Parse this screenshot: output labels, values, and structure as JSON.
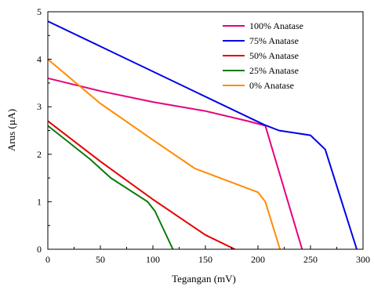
{
  "chart_data": {
    "type": "line",
    "xlabel": "Tegangan (mV)",
    "ylabel": "Arus (µA)",
    "xlim": [
      0,
      300
    ],
    "ylim": [
      0,
      5
    ],
    "x_ticks": [
      "0",
      "50",
      "100",
      "150",
      "200",
      "250",
      "300"
    ],
    "y_ticks": [
      "0",
      "1",
      "2",
      "3",
      "4",
      "5"
    ],
    "grid": false,
    "legend_position": "top-right",
    "series": [
      {
        "name": "100% Anatase",
        "color": "#e6007e",
        "points": [
          [
            0,
            3.6
          ],
          [
            50,
            3.33
          ],
          [
            100,
            3.1
          ],
          [
            150,
            2.91
          ],
          [
            190,
            2.7
          ],
          [
            207,
            2.6
          ],
          [
            242,
            0
          ]
        ]
      },
      {
        "name": "75% Anatase",
        "color": "#0000e6",
        "points": [
          [
            0,
            4.8
          ],
          [
            206,
            2.62
          ],
          [
            220,
            2.5
          ],
          [
            250,
            2.4
          ],
          [
            264,
            2.1
          ],
          [
            294,
            0
          ]
        ]
      },
      {
        "name": "50% Anatase",
        "color": "#e60000",
        "points": [
          [
            0,
            2.7
          ],
          [
            50,
            1.85
          ],
          [
            100,
            1.05
          ],
          [
            150,
            0.3
          ],
          [
            178,
            0
          ]
        ]
      },
      {
        "name": "25% Anatase",
        "color": "#0a7a0a",
        "points": [
          [
            0,
            2.6
          ],
          [
            40,
            1.9
          ],
          [
            60,
            1.5
          ],
          [
            95,
            1.0
          ],
          [
            102,
            0.8
          ],
          [
            119,
            0
          ]
        ]
      },
      {
        "name": "0% Anatase",
        "color": "#ff8c00",
        "points": [
          [
            0,
            4.0
          ],
          [
            50,
            3.07
          ],
          [
            100,
            2.3
          ],
          [
            140,
            1.7
          ],
          [
            200,
            1.2
          ],
          [
            207,
            1.0
          ],
          [
            221,
            0
          ]
        ]
      }
    ]
  }
}
